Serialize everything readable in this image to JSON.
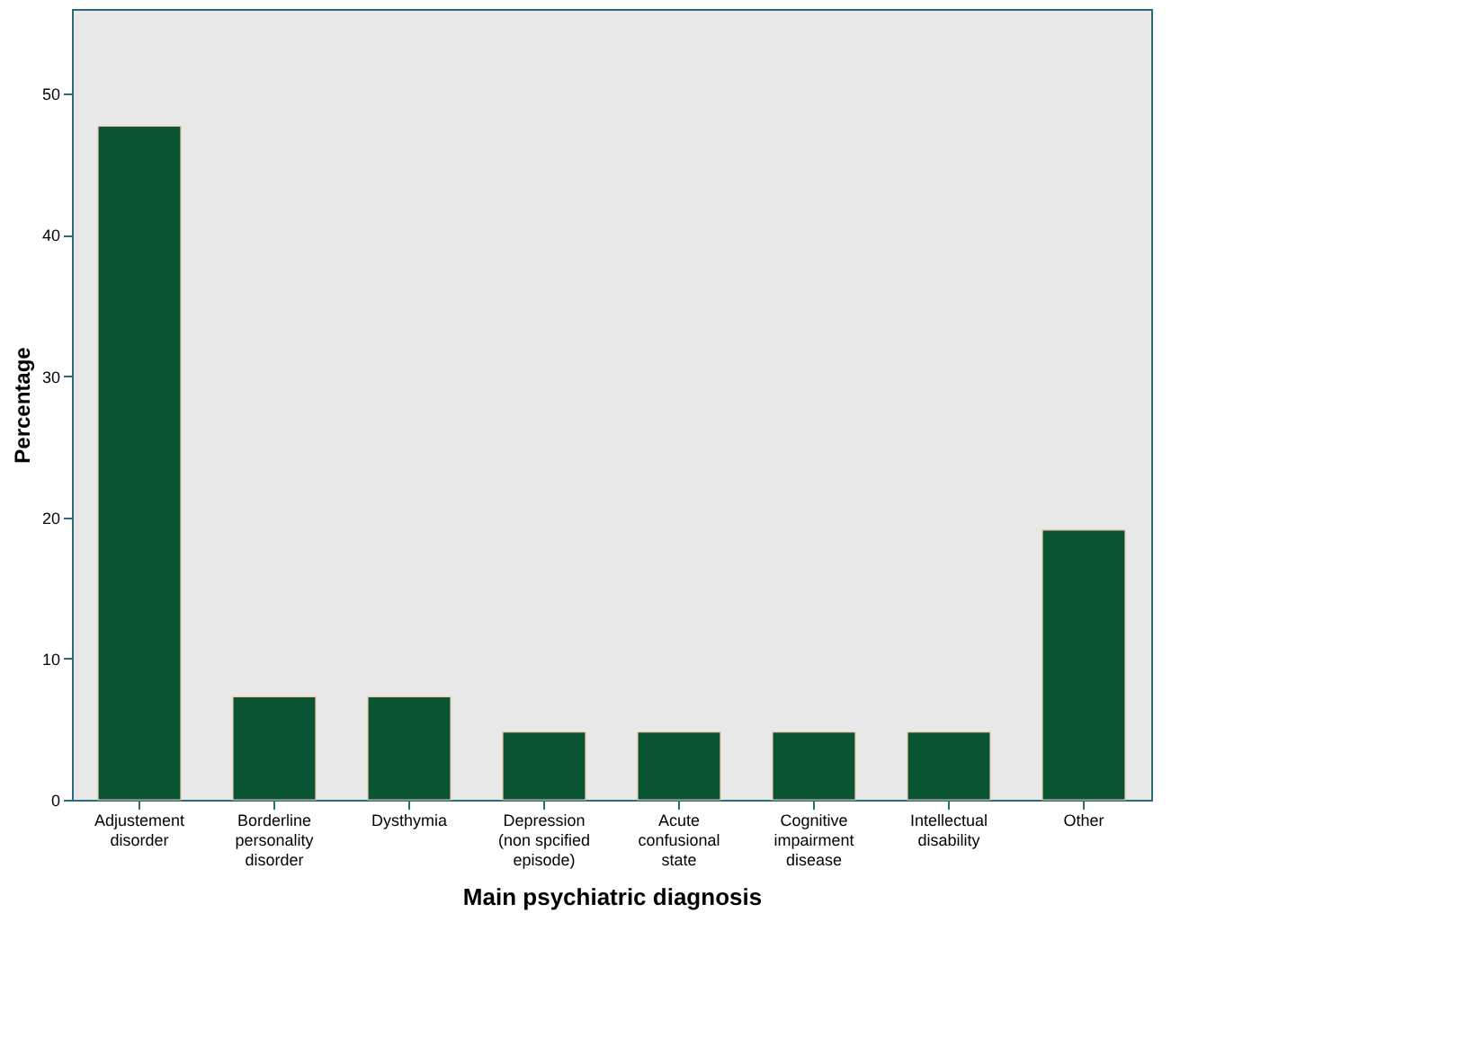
{
  "chart_data": {
    "type": "bar",
    "xlabel": "Main psychiatric diagnosis",
    "ylabel": "Percentage",
    "categories": [
      "Adjustement disorder",
      "Borderline personality disorder",
      "Dysthymia",
      "Depression (non spcified episode)",
      "Acute confusional state",
      "Cognitive impairment disease",
      "Intellectual disability",
      "Other"
    ],
    "values": [
      47.7,
      7.3,
      7.3,
      4.8,
      4.8,
      4.8,
      4.8,
      19.1
    ],
    "color": "#0a5434",
    "ylim": [
      0,
      56
    ],
    "yticks": [
      0,
      10,
      20,
      30,
      40,
      50
    ],
    "grid": false
  }
}
